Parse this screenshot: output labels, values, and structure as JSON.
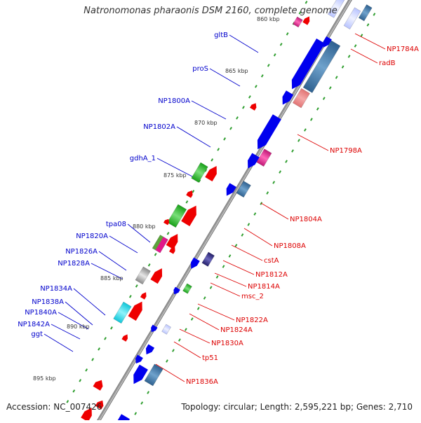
{
  "title": "Natronomonas pharaonis DSM 2160, complete genome",
  "footer": {
    "accession": "Accession: NC_007426",
    "topology": "Topology: circular; Length: 2,595,221 bp; Genes: 2,710"
  },
  "ticks": [
    "860 kbp",
    "865 kbp",
    "870 kbp",
    "875 kbp",
    "880 kbp",
    "885 kbp",
    "890 kbp",
    "895 kbp"
  ],
  "left_labels": [
    "gltB",
    "proS",
    "NP1800A",
    "NP1802A",
    "gdhA_1",
    "tpa08",
    "NP1820A",
    "NP1826A",
    "NP1828A",
    "NP1834A",
    "NP1838A",
    "NP1840A",
    "NP1842A",
    "ggt"
  ],
  "right_labels": [
    "NP1784A",
    "radB",
    "NP1798A",
    "NP1804A",
    "NP1808A",
    "cstA",
    "NP1812A",
    "NP1814A",
    "msc_2",
    "NP1822A",
    "NP1824A",
    "NP1830A",
    "tp51",
    "NP1836A"
  ],
  "colors": {
    "backbone": "#9a9a9a",
    "forward_gene": "#0000ee",
    "reverse_gene": "#ee0000",
    "left_label": "#0000cc",
    "right_label": "#dd0000",
    "tick_dots": "#2f9e2f"
  }
}
